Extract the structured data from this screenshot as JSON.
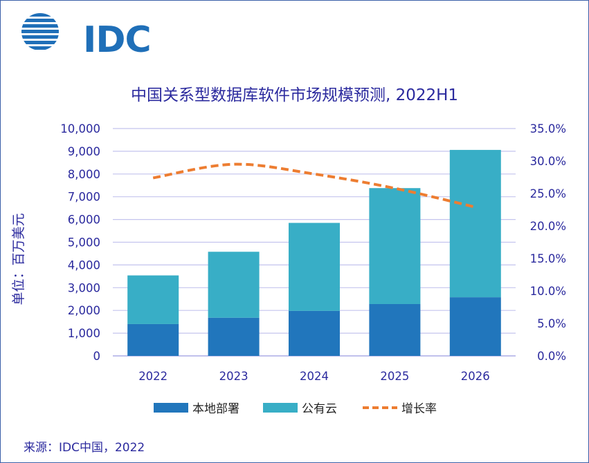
{
  "logo": {
    "text": "IDC"
  },
  "source": "来源：IDC中国，2022",
  "chart_data": {
    "type": "bar",
    "stacked": true,
    "title": "中国关系型数据库软件市场规模预测, 2022H1",
    "ylabel": "单位：百万美元",
    "xlabel": "",
    "categories": [
      "2022",
      "2023",
      "2024",
      "2025",
      "2026"
    ],
    "ylim": [
      0,
      10000
    ],
    "yticks": [
      "0",
      "1,000",
      "2,000",
      "3,000",
      "4,000",
      "5,000",
      "6,000",
      "7,000",
      "8,000",
      "9,000",
      "10,000"
    ],
    "y2lim": [
      0,
      35
    ],
    "y2ticks": [
      "0.0%",
      "5.0%",
      "10.0%",
      "15.0%",
      "20.0%",
      "25.0%",
      "30.0%",
      "35.0%"
    ],
    "series": [
      {
        "name": "本地部署",
        "axis": "left",
        "color": "#2176bc",
        "values": [
          1400,
          1680,
          1980,
          2280,
          2580
        ]
      },
      {
        "name": "公有云",
        "axis": "left",
        "color": "#38aec6",
        "values": [
          2140,
          2900,
          3870,
          5100,
          6480
        ]
      },
      {
        "name": "增长率",
        "axis": "right",
        "type": "line",
        "style": "dashed",
        "color": "#ed7d31",
        "values": [
          27.4,
          29.5,
          28.0,
          25.8,
          22.9
        ]
      }
    ],
    "legend": "bottom"
  }
}
